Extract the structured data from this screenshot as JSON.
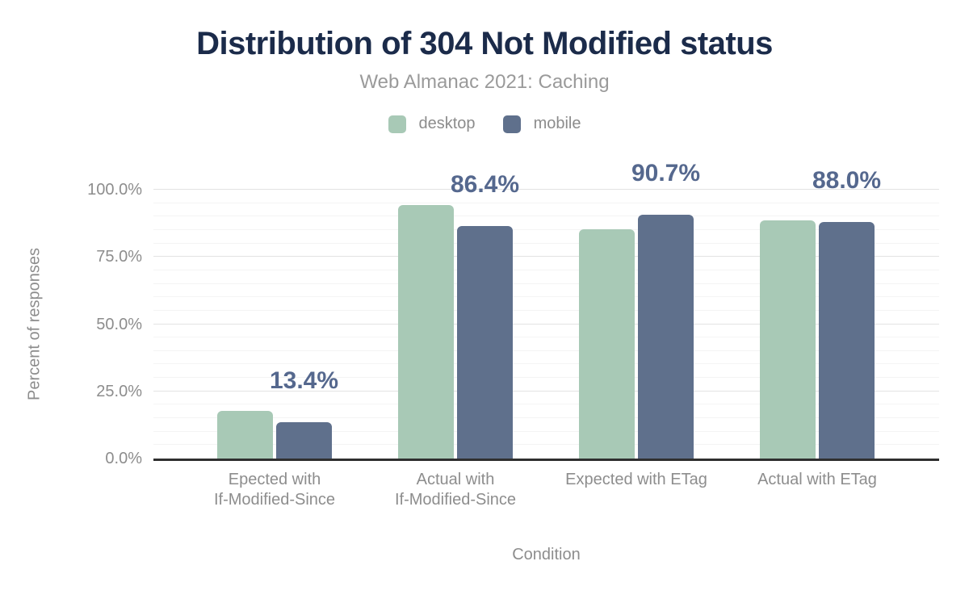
{
  "chart_data": {
    "type": "bar",
    "title": "Distribution of 304 Not Modified status",
    "subtitle": "Web Almanac 2021: Caching",
    "xlabel": "Condition",
    "ylabel": "Percent of responses",
    "categories": [
      "Epected with If-Modified-Since",
      "Actual with If-Modified-Since",
      "Expected with ETag",
      "Actual with ETag"
    ],
    "category_lines": [
      [
        "Epected with",
        "If-Modified-Since"
      ],
      [
        "Actual with",
        "If-Modified-Since"
      ],
      [
        "Expected with ETag"
      ],
      [
        "Actual with ETag"
      ]
    ],
    "series": [
      {
        "name": "desktop",
        "color": "#a8c9b6",
        "values": [
          17.6,
          94.2,
          85.3,
          88.7
        ]
      },
      {
        "name": "mobile",
        "color": "#5f708c",
        "values": [
          13.4,
          86.4,
          90.7,
          88.0
        ]
      }
    ],
    "data_labels": {
      "series": "mobile",
      "values": [
        "13.4%",
        "86.4%",
        "90.7%",
        "88.0%"
      ]
    },
    "y_ticks": [
      {
        "label": "0.0%",
        "value": 0
      },
      {
        "label": "25.0%",
        "value": 25
      },
      {
        "label": "50.0%",
        "value": 50
      },
      {
        "label": "75.0%",
        "value": 75
      },
      {
        "label": "100.0%",
        "value": 100
      }
    ],
    "ylim": [
      0,
      100
    ],
    "grid": {
      "minor_step": 5,
      "major_step": 25
    },
    "legend_position": "top"
  },
  "colors": {
    "title": "#1b2b4a",
    "subtitle": "#9a9a9a",
    "axis_text": "#8d8d8d",
    "data_label": "#55688e",
    "desktop_bar": "#a8c9b6",
    "mobile_bar": "#5f708c",
    "gridline_major": "#e3e3e3",
    "gridline_minor": "#f4f4f4",
    "axis_line": "#2f2f2f",
    "background": "#ffffff"
  }
}
